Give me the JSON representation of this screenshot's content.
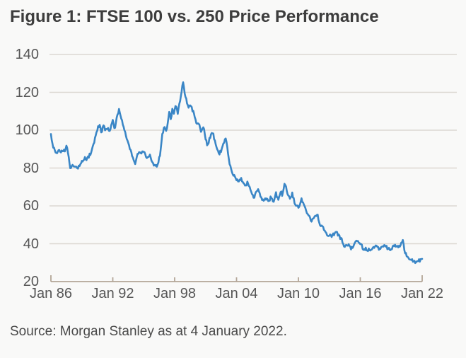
{
  "title": "Figure 1: FTSE 100 vs. 250 Price Performance",
  "source": "Source: Morgan Stanley as at 4 January 2022.",
  "colors": {
    "background": "#f9f9f8",
    "line": "#3a86c6",
    "gridline": "#dcd8d2",
    "axis": "#b3a597",
    "title_text": "#3d3d3d",
    "tick_text": "#565656",
    "source_text": "#4a4a4a"
  },
  "chart_data": {
    "type": "line",
    "title": "Figure 1: FTSE 100 vs. 250 Price Performance",
    "xlabel": "",
    "ylabel": "",
    "xlim": [
      1986,
      2022
    ],
    "ylim": [
      20,
      140
    ],
    "grid": "horizontal",
    "legend": "none",
    "x_tick_labels": [
      "Jan 86",
      "Jan 92",
      "Jan 98",
      "Jan 04",
      "Jan 10",
      "Jan 16",
      "Jan 22"
    ],
    "x_tick_years": [
      1986,
      1992,
      1998,
      2004,
      2010,
      2016,
      2022
    ],
    "y_ticks": [
      140,
      120,
      100,
      80,
      60,
      40,
      20
    ],
    "series": [
      {
        "label": "FTSE 100 vs. 250",
        "x_units": "year",
        "points": [
          [
            1986.0,
            98
          ],
          [
            1986.08,
            95
          ],
          [
            1986.2,
            92
          ],
          [
            1986.4,
            90
          ],
          [
            1986.6,
            89
          ],
          [
            1986.8,
            90
          ],
          [
            1987.0,
            89.5
          ],
          [
            1987.2,
            90
          ],
          [
            1987.4,
            90
          ],
          [
            1987.5,
            92
          ],
          [
            1987.7,
            88
          ],
          [
            1987.8,
            83
          ],
          [
            1987.95,
            80
          ],
          [
            1988.1,
            82
          ],
          [
            1988.25,
            80.5
          ],
          [
            1988.4,
            80
          ],
          [
            1988.6,
            80.5
          ],
          [
            1988.8,
            82
          ],
          [
            1989.1,
            84
          ],
          [
            1989.3,
            86
          ],
          [
            1989.5,
            85.5
          ],
          [
            1989.8,
            88
          ],
          [
            1990.0,
            90
          ],
          [
            1990.2,
            94
          ],
          [
            1990.5,
            100
          ],
          [
            1990.7,
            103
          ],
          [
            1990.9,
            99
          ],
          [
            1991.1,
            103
          ],
          [
            1991.3,
            100
          ],
          [
            1991.5,
            102
          ],
          [
            1991.7,
            100
          ],
          [
            1992.0,
            105
          ],
          [
            1992.2,
            100
          ],
          [
            1992.45,
            108
          ],
          [
            1992.6,
            111
          ],
          [
            1992.9,
            106
          ],
          [
            1993.1,
            101
          ],
          [
            1993.3,
            97
          ],
          [
            1993.5,
            93
          ],
          [
            1993.8,
            88
          ],
          [
            1994.0,
            85
          ],
          [
            1994.15,
            82
          ],
          [
            1994.4,
            86.5
          ],
          [
            1994.8,
            88
          ],
          [
            1995.0,
            89.5
          ],
          [
            1995.3,
            86.5
          ],
          [
            1995.6,
            88
          ],
          [
            1995.8,
            84
          ],
          [
            1996.0,
            82
          ],
          [
            1996.3,
            81
          ],
          [
            1996.6,
            87
          ],
          [
            1996.8,
            98
          ],
          [
            1997.0,
            103
          ],
          [
            1997.2,
            100
          ],
          [
            1997.5,
            110
          ],
          [
            1997.65,
            106
          ],
          [
            1997.8,
            112
          ],
          [
            1997.95,
            108
          ],
          [
            1998.1,
            114
          ],
          [
            1998.3,
            110
          ],
          [
            1998.5,
            116
          ],
          [
            1998.65,
            119
          ],
          [
            1998.8,
            125
          ],
          [
            1998.95,
            120
          ],
          [
            1999.1,
            116
          ],
          [
            1999.3,
            112
          ],
          [
            1999.55,
            114
          ],
          [
            1999.75,
            110
          ],
          [
            1999.9,
            109
          ],
          [
            2000.1,
            104.5
          ],
          [
            2000.35,
            105
          ],
          [
            2000.55,
            100
          ],
          [
            2000.8,
            101.5
          ],
          [
            2001.0,
            96
          ],
          [
            2001.2,
            92
          ],
          [
            2001.5,
            97
          ],
          [
            2001.7,
            98
          ],
          [
            2001.9,
            94
          ],
          [
            2002.1,
            91
          ],
          [
            2002.3,
            88
          ],
          [
            2002.5,
            90
          ],
          [
            2002.8,
            94
          ],
          [
            2003.0,
            95
          ],
          [
            2003.2,
            85
          ],
          [
            2003.4,
            80
          ],
          [
            2003.6,
            76.5
          ],
          [
            2003.9,
            76
          ],
          [
            2004.2,
            73.5
          ],
          [
            2004.4,
            75
          ],
          [
            2004.6,
            73.5
          ],
          [
            2004.9,
            71
          ],
          [
            2005.1,
            73
          ],
          [
            2005.3,
            70
          ],
          [
            2005.5,
            67
          ],
          [
            2005.7,
            64
          ],
          [
            2005.9,
            66
          ],
          [
            2006.1,
            67.5
          ],
          [
            2006.3,
            64.5
          ],
          [
            2006.6,
            62.5
          ],
          [
            2006.9,
            64
          ],
          [
            2007.1,
            62
          ],
          [
            2007.3,
            64.5
          ],
          [
            2007.6,
            62.5
          ],
          [
            2007.8,
            67
          ],
          [
            2008.0,
            64
          ],
          [
            2008.3,
            68
          ],
          [
            2008.45,
            65.5
          ],
          [
            2008.7,
            72.5
          ],
          [
            2008.85,
            68
          ],
          [
            2009.0,
            64.5
          ],
          [
            2009.2,
            63
          ],
          [
            2009.4,
            65.5
          ],
          [
            2009.7,
            60
          ],
          [
            2009.9,
            61
          ],
          [
            2010.1,
            60
          ],
          [
            2010.3,
            63
          ],
          [
            2010.5,
            61
          ],
          [
            2010.8,
            58
          ],
          [
            2011.0,
            56
          ],
          [
            2011.2,
            52.5
          ],
          [
            2011.5,
            53
          ],
          [
            2011.8,
            55.5
          ],
          [
            2012.1,
            50
          ],
          [
            2012.5,
            47
          ],
          [
            2012.9,
            44.5
          ],
          [
            2013.3,
            44
          ],
          [
            2013.6,
            46
          ],
          [
            2013.9,
            43.5
          ],
          [
            2014.2,
            41
          ],
          [
            2014.5,
            37.5
          ],
          [
            2014.8,
            39
          ],
          [
            2015.1,
            37
          ],
          [
            2015.5,
            40.5
          ],
          [
            2015.8,
            40
          ],
          [
            2016.0,
            39.5
          ],
          [
            2016.3,
            37.5
          ],
          [
            2016.6,
            38
          ],
          [
            2016.9,
            37.5
          ],
          [
            2017.2,
            38
          ],
          [
            2017.5,
            37.5
          ],
          [
            2017.8,
            38
          ],
          [
            2018.1,
            38.5
          ],
          [
            2018.3,
            39
          ],
          [
            2018.6,
            38
          ],
          [
            2018.9,
            37
          ],
          [
            2019.2,
            38.5
          ],
          [
            2019.5,
            37.5
          ],
          [
            2019.8,
            38
          ],
          [
            2020.0,
            40
          ],
          [
            2020.15,
            42
          ],
          [
            2020.3,
            36
          ],
          [
            2020.5,
            34
          ],
          [
            2020.8,
            32
          ],
          [
            2021.1,
            31.5
          ],
          [
            2021.4,
            30.8
          ],
          [
            2021.7,
            31
          ],
          [
            2021.9,
            31.5
          ],
          [
            2022.0,
            32
          ]
        ]
      }
    ]
  }
}
